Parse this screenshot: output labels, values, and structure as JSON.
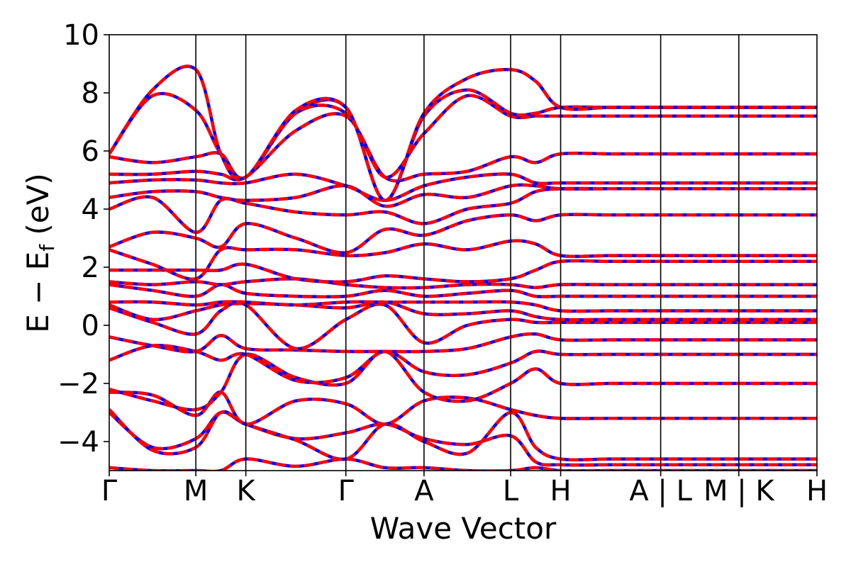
{
  "chart_data": {
    "type": "line",
    "title": "",
    "xlabel": "Wave Vector",
    "ylabel_main": "E − E",
    "ylabel_sub": "f",
    "ylabel_unit": " (eV)",
    "ylim": [
      -5,
      10
    ],
    "yticks": [
      10,
      8,
      6,
      4,
      2,
      0,
      -2,
      -4
    ],
    "ytick_labels": [
      "10",
      "8",
      "6",
      "4",
      "2",
      "0",
      "−2",
      "−4"
    ],
    "kpoints": [
      {
        "label": "Γ",
        "x": 0.0
      },
      {
        "label": "M",
        "x": 1.0
      },
      {
        "label": "K",
        "x": 1.577
      },
      {
        "label": "Γ",
        "x": 2.732
      },
      {
        "label": "A",
        "x": 3.634
      },
      {
        "label": "L",
        "x": 4.634
      },
      {
        "label": "H",
        "x": 5.211
      },
      {
        "label": "A",
        "x": 6.366
      },
      {
        "label": "L",
        "x": 6.366
      },
      {
        "label": "M",
        "x": 7.268
      },
      {
        "label": "K",
        "x": 7.268
      },
      {
        "label": "H",
        "x": 8.17
      }
    ],
    "xtick_labels": [
      {
        "text": "Γ",
        "x": 0.0
      },
      {
        "text": "M",
        "x": 1.0
      },
      {
        "text": "K",
        "x": 1.577
      },
      {
        "text": "Γ",
        "x": 2.732
      },
      {
        "text": "A",
        "x": 3.634
      },
      {
        "text": "L",
        "x": 4.634
      },
      {
        "text": "H",
        "x": 5.211
      },
      {
        "text": "A | L",
        "x": 6.366
      },
      {
        "text": "M | K",
        "x": 7.268
      },
      {
        "text": "H",
        "x": 8.17
      }
    ],
    "series_colors": {
      "spin_up": "#0000ff",
      "spin_down": "#ff0000"
    },
    "band_energies_eV": [
      [
        -4.9,
        -5.0,
        -5.0,
        -5.0,
        -4.6,
        -4.85,
        -4.6,
        -4.9,
        -4.9,
        -5.0,
        -5.0,
        -4.9,
        -5.0
      ],
      [
        -3.0,
        -4.2,
        -3.9,
        -3.0,
        -3.4,
        -3.9,
        -3.7,
        -3.4,
        -3.9,
        -4.1,
        -3.8,
        -4.7,
        -4.8
      ],
      [
        -2.9,
        -4.3,
        -4.2,
        -3.0,
        -3.4,
        -3.95,
        -4.6,
        -3.4,
        -4.0,
        -4.4,
        -3.0,
        -4.2,
        -4.6
      ],
      [
        -2.3,
        -2.4,
        -3.1,
        -2.3,
        -3.4,
        -2.6,
        -2.7,
        -3.4,
        -2.6,
        -2.5,
        -2.9,
        -3.1,
        -3.2
      ],
      [
        -2.2,
        -2.6,
        -2.9,
        -2.3,
        -1.0,
        -1.8,
        -2.0,
        -0.9,
        -2.3,
        -2.6,
        -2.0,
        -1.5,
        -2.0
      ],
      [
        -1.2,
        -0.7,
        -0.9,
        -1.2,
        -1.0,
        -1.9,
        -1.8,
        -0.9,
        -1.6,
        -1.7,
        -1.3,
        -0.9,
        -1.0
      ],
      [
        -0.4,
        -0.7,
        -0.9,
        -0.35,
        -0.8,
        -0.85,
        -0.9,
        -0.9,
        -0.9,
        -0.8,
        -0.4,
        -0.3,
        -0.5
      ],
      [
        0.6,
        0.1,
        -0.3,
        0.5,
        0.7,
        -0.8,
        0.2,
        0.7,
        -0.6,
        0.0,
        0.2,
        0.1,
        0.1
      ],
      [
        0.7,
        0.2,
        0.5,
        0.7,
        0.75,
        0.7,
        0.6,
        0.8,
        0.4,
        0.4,
        0.5,
        0.3,
        0.2
      ],
      [
        0.8,
        0.8,
        0.7,
        0.8,
        0.8,
        0.7,
        0.8,
        0.8,
        0.8,
        0.8,
        0.8,
        0.7,
        0.5
      ],
      [
        1.4,
        1.2,
        1.0,
        1.4,
        1.1,
        1.0,
        1.0,
        1.2,
        1.0,
        1.1,
        1.2,
        1.0,
        1.0
      ],
      [
        1.5,
        1.4,
        1.5,
        1.4,
        1.5,
        1.6,
        1.4,
        1.3,
        1.3,
        1.4,
        1.4,
        1.3,
        1.4
      ],
      [
        1.9,
        1.9,
        1.9,
        1.9,
        2.1,
        1.6,
        1.5,
        1.7,
        1.6,
        1.5,
        1.6,
        1.9,
        2.2
      ],
      [
        2.6,
        2.1,
        1.6,
        2.6,
        2.6,
        2.6,
        2.4,
        2.5,
        2.8,
        2.6,
        2.9,
        2.8,
        2.4
      ],
      [
        2.7,
        3.2,
        3.0,
        2.7,
        3.5,
        3.0,
        2.5,
        3.3,
        3.1,
        3.6,
        3.8,
        3.6,
        3.8
      ],
      [
        4.0,
        4.4,
        3.2,
        4.3,
        4.2,
        3.9,
        3.8,
        3.9,
        3.5,
        4.0,
        4.2,
        4.6,
        4.7
      ],
      [
        4.4,
        4.6,
        4.6,
        4.4,
        4.3,
        4.4,
        4.8,
        4.1,
        4.5,
        4.4,
        4.8,
        4.8,
        4.7
      ],
      [
        4.9,
        5.0,
        5.0,
        4.9,
        4.9,
        5.2,
        4.8,
        4.3,
        4.8,
        5.1,
        5.2,
        4.9,
        4.9
      ],
      [
        5.2,
        5.2,
        5.3,
        5.2,
        5.1,
        6.7,
        7.2,
        5.1,
        5.2,
        5.3,
        5.8,
        5.6,
        5.9
      ],
      [
        5.8,
        5.6,
        5.8,
        5.9,
        5.1,
        7.3,
        7.3,
        5.1,
        6.6,
        7.9,
        7.2,
        7.2,
        7.2
      ],
      [
        5.9,
        7.9,
        7.4,
        5.9,
        5.1,
        7.3,
        7.5,
        4.3,
        7.2,
        8.1,
        7.3,
        7.3,
        7.5
      ],
      [
        5.9,
        8.1,
        8.8,
        5.9,
        5.1,
        7.4,
        7.5,
        4.3,
        7.3,
        8.5,
        8.8,
        8.4,
        7.5
      ]
    ]
  }
}
